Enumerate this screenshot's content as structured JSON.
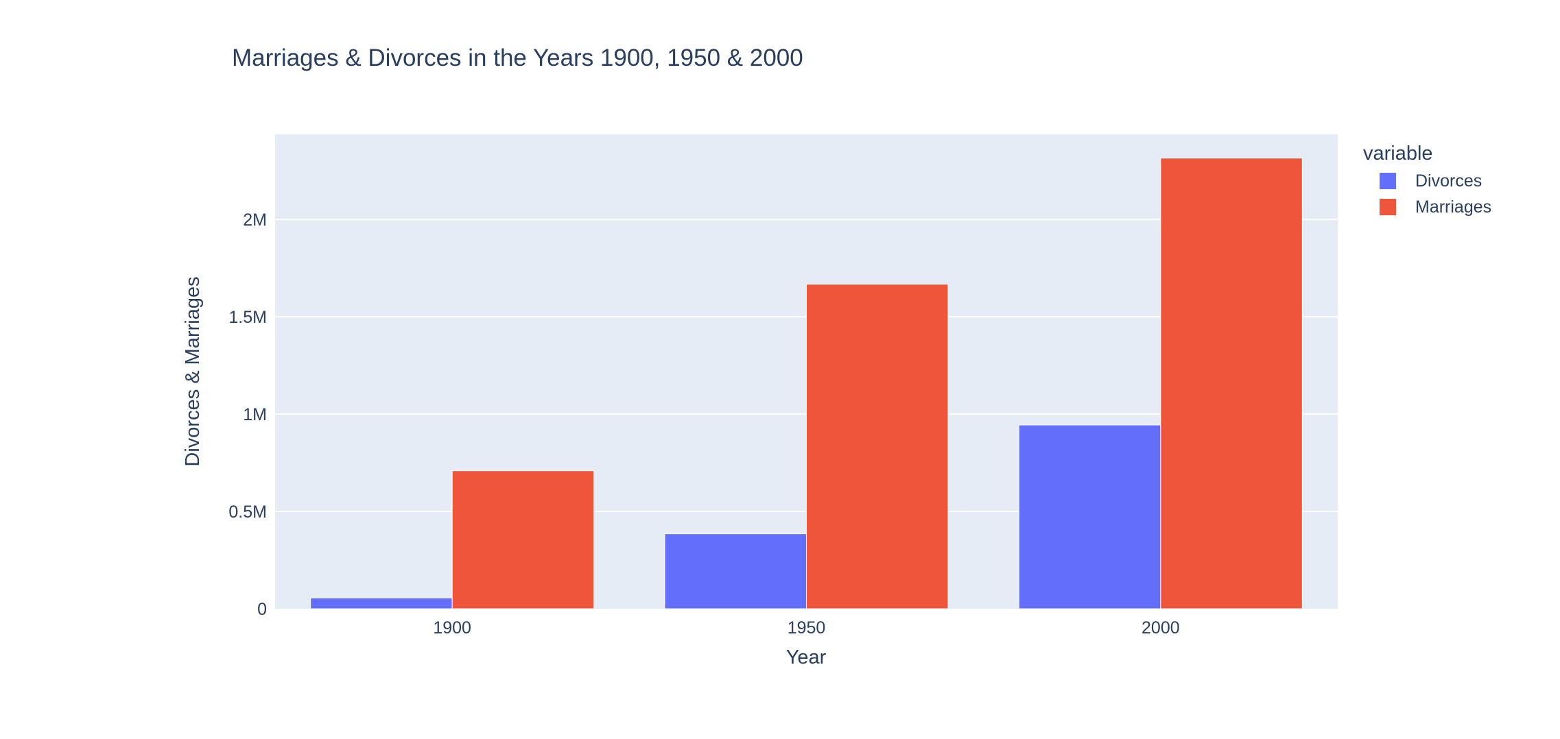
{
  "chart_data": {
    "type": "bar",
    "title": "Marriages & Divorces in the Years 1900, 1950 & 2000",
    "xlabel": "Year",
    "ylabel": "Divorces & Marriages",
    "categories": [
      "1900",
      "1950",
      "2000"
    ],
    "series": [
      {
        "name": "Divorces",
        "color": "#636efa",
        "values": [
          55751,
          385144,
          944000
        ]
      },
      {
        "name": "Marriages",
        "color": "#ef553b",
        "values": [
          709000,
          1667231,
          2315000
        ]
      }
    ],
    "ylim": [
      0,
      2437000
    ],
    "yticks": [
      {
        "value": 0,
        "label": "0"
      },
      {
        "value": 500000,
        "label": "0.5M"
      },
      {
        "value": 1000000,
        "label": "1M"
      },
      {
        "value": 1500000,
        "label": "1.5M"
      },
      {
        "value": 2000000,
        "label": "2M"
      }
    ],
    "grid": true,
    "legend": {
      "title": "variable",
      "placement": "top-right"
    },
    "plot_background": "#e5ecf6"
  }
}
